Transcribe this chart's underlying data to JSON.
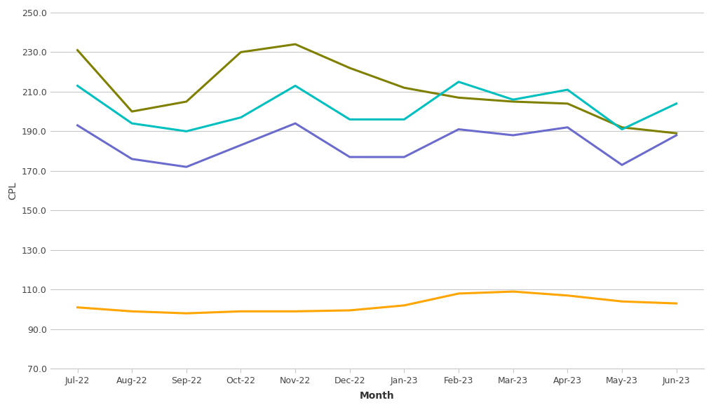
{
  "months": [
    "Jul-22",
    "Aug-22",
    "Sep-22",
    "Oct-22",
    "Nov-22",
    "Dec-22",
    "Jan-23",
    "Feb-23",
    "Mar-23",
    "Apr-23",
    "May-23",
    "Jun-23"
  ],
  "series": {
    "olive": [
      231.0,
      200.0,
      205.0,
      230.0,
      234.0,
      222.0,
      212.0,
      207.0,
      205.0,
      204.0,
      192.0,
      189.0
    ],
    "cyan": [
      213.0,
      194.0,
      190.0,
      197.0,
      213.0,
      196.0,
      196.0,
      215.0,
      206.0,
      211.0,
      191.0,
      204.0
    ],
    "purple": [
      193.0,
      176.0,
      172.0,
      183.0,
      194.0,
      177.0,
      177.0,
      191.0,
      188.0,
      192.0,
      173.0,
      188.0
    ],
    "orange": [
      101.0,
      99.0,
      98.0,
      99.0,
      99.0,
      99.5,
      102.0,
      108.0,
      109.0,
      107.0,
      104.0,
      103.0
    ]
  },
  "colors": {
    "olive": "#808000",
    "cyan": "#00BFBF",
    "purple": "#6B6BCD",
    "orange": "#FFA500"
  },
  "ylim": [
    70.0,
    250.0
  ],
  "yticks": [
    70.0,
    90.0,
    110.0,
    130.0,
    150.0,
    170.0,
    190.0,
    210.0,
    230.0,
    250.0
  ],
  "ylabel": "CPL",
  "xlabel": "Month",
  "background_color": "#ffffff",
  "grid_color": "#c8c8c8",
  "line_width": 2.2,
  "tick_fontsize": 9,
  "label_fontsize": 10
}
